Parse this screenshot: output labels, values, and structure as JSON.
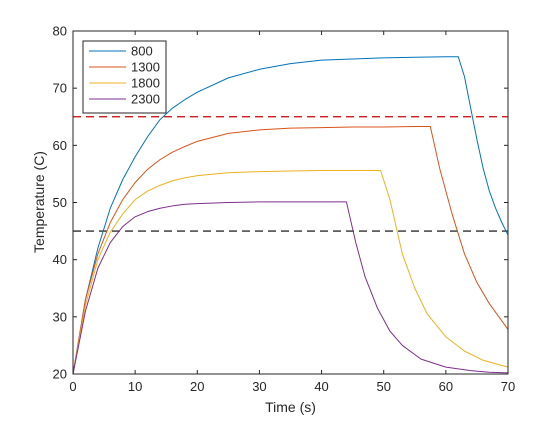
{
  "chart_data": {
    "type": "line",
    "title": "",
    "xlabel": "Time (s)",
    "ylabel": "Temperature (C)",
    "xlim": [
      0,
      70
    ],
    "ylim": [
      20,
      80
    ],
    "xticks": [
      0,
      10,
      20,
      30,
      40,
      50,
      60,
      70
    ],
    "yticks": [
      20,
      30,
      40,
      50,
      60,
      70,
      80
    ],
    "grid": false,
    "legend_position": "top-left",
    "series": [
      {
        "name": "800",
        "color": "#0072BD",
        "x": [
          0,
          2,
          4,
          6,
          8,
          10,
          12,
          14,
          16,
          18,
          20,
          25,
          30,
          35,
          40,
          45,
          50,
          55,
          60,
          62,
          63,
          64,
          65,
          66,
          67,
          68,
          69,
          70
        ],
        "y": [
          20,
          33,
          42,
          49,
          54,
          58,
          61.5,
          64.5,
          66.5,
          68,
          69.3,
          71.8,
          73.3,
          74.3,
          74.9,
          75.1,
          75.3,
          75.4,
          75.5,
          75.5,
          72,
          66.5,
          61,
          56,
          52,
          49,
          46.5,
          44.3
        ]
      },
      {
        "name": "1300",
        "color": "#D95319",
        "x": [
          0,
          2,
          4,
          6,
          8,
          10,
          12,
          14,
          16,
          18,
          20,
          25,
          30,
          35,
          40,
          45,
          50,
          55,
          57.5,
          59,
          61,
          63,
          65,
          67,
          69,
          70
        ],
        "y": [
          20,
          33,
          41,
          46.5,
          50.5,
          53.5,
          55.8,
          57.5,
          58.8,
          59.8,
          60.7,
          62.1,
          62.7,
          63,
          63.1,
          63.2,
          63.2,
          63.3,
          63.3,
          56,
          48,
          41,
          36,
          32.3,
          29.3,
          27.8
        ]
      },
      {
        "name": "1800",
        "color": "#EDB120",
        "x": [
          0,
          2,
          4,
          6,
          8,
          10,
          12,
          14,
          16,
          18,
          20,
          25,
          30,
          35,
          40,
          45,
          49.5,
          51,
          53,
          55,
          57,
          60,
          63,
          66,
          68,
          70
        ],
        "y": [
          20,
          32,
          40,
          44.8,
          48,
          50.5,
          52,
          53,
          53.8,
          54.3,
          54.7,
          55.2,
          55.4,
          55.5,
          55.6,
          55.6,
          55.6,
          50.5,
          41,
          35,
          30.5,
          26.5,
          24,
          22.4,
          21.8,
          21.2
        ]
      },
      {
        "name": "2300",
        "color": "#7E2F8E",
        "x": [
          0,
          2,
          4,
          6,
          8,
          10,
          12,
          14,
          16,
          18,
          20,
          25,
          30,
          35,
          40,
          44,
          45.5,
          47,
          49,
          51,
          53,
          56,
          60,
          64,
          67,
          70
        ],
        "y": [
          20,
          31,
          38.5,
          43,
          45.8,
          47.5,
          48.4,
          49,
          49.4,
          49.7,
          49.8,
          50,
          50.1,
          50.1,
          50.1,
          50.1,
          43,
          37,
          31.5,
          27.5,
          25,
          22.6,
          21.2,
          20.6,
          20.3,
          20.2
        ]
      }
    ],
    "reference_lines": [
      {
        "y": 65,
        "color": "#cc0000",
        "style": "dashed"
      },
      {
        "y": 45,
        "color": "#000000",
        "style": "dashed"
      }
    ]
  }
}
